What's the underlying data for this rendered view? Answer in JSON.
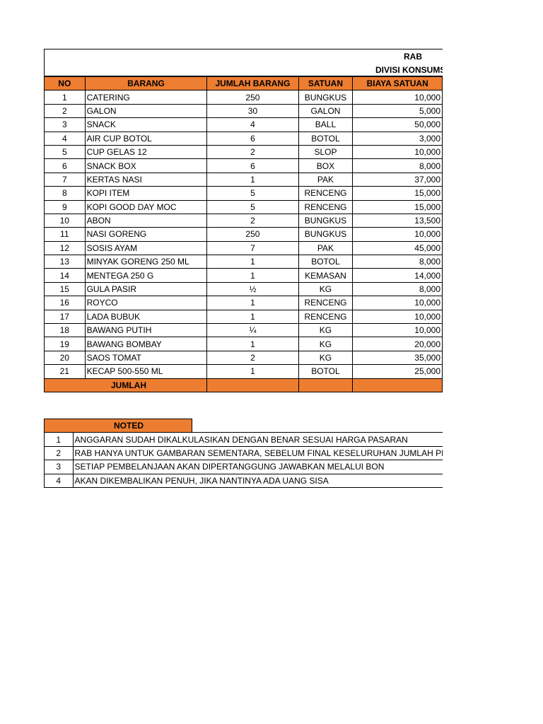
{
  "title": "RAB",
  "subtitle": "DIVISI KONSUMS",
  "headers": [
    "NO",
    "BARANG",
    "JUMLAH BARANG",
    "SATUAN",
    "BIAYA SATUAN"
  ],
  "rows": [
    [
      "1",
      "CATERING",
      "250",
      "BUNGKUS",
      "10,000"
    ],
    [
      "2",
      "GALON",
      "30",
      "GALON",
      "5,000"
    ],
    [
      "3",
      "SNACK",
      "4",
      "BALL",
      "50,000"
    ],
    [
      "4",
      "AIR CUP BOTOL",
      "6",
      "BOTOL",
      "3,000"
    ],
    [
      "5",
      "CUP GELAS 12",
      "2",
      "SLOP",
      "10,000"
    ],
    [
      "6",
      "SNACK BOX",
      "6",
      "BOX",
      "8,000"
    ],
    [
      "7",
      "KERTAS NASI",
      "1",
      "PAK",
      "37,000"
    ],
    [
      "8",
      "KOPI ITEM",
      "5",
      "RENCENG",
      "15,000"
    ],
    [
      "9",
      "KOPI GOOD DAY MOC",
      "5",
      "RENCENG",
      "15,000"
    ],
    [
      "10",
      "ABON",
      "2",
      "BUNGKUS",
      "13,500"
    ],
    [
      "11",
      "NASI GORENG",
      "250",
      "BUNGKUS",
      "10,000"
    ],
    [
      "12",
      "SOSIS AYAM",
      "7",
      "PAK",
      "45,000"
    ],
    [
      "13",
      "MINYAK GORENG 250 ML",
      "1",
      "BOTOL",
      "8,000"
    ],
    [
      "14",
      "MENTEGA 250 G",
      "1",
      "KEMASAN",
      "14,000"
    ],
    [
      "15",
      "GULA PASIR",
      "½",
      "KG",
      "8,000"
    ],
    [
      "16",
      "ROYCO",
      "1",
      "RENCENG",
      "10,000"
    ],
    [
      "17",
      "LADA BUBUK",
      "1",
      "RENCENG",
      "10,000"
    ],
    [
      "18",
      "BAWANG PUTIH",
      "¼",
      "KG",
      "10,000"
    ],
    [
      "19",
      "BAWANG BOMBAY",
      "1",
      "KG",
      "20,000"
    ],
    [
      "20",
      "SAOS TOMAT",
      "2",
      "KG",
      "35,000"
    ],
    [
      "21",
      "KECAP 500-550 ML",
      "1",
      "BOTOL",
      "25,000"
    ]
  ],
  "total_label": "JUMLAH",
  "notes_header": "NOTED",
  "notes": [
    [
      "1",
      "ANGGARAN SUDAH DIKALKULASIKAN DENGAN BENAR SESUAI HARGA PASARAN"
    ],
    [
      "2",
      "RAB HANYA UNTUK GAMBARAN SEMENTARA, SEBELUM FINAL KESELURUHAN JUMLAH PE"
    ],
    [
      "3",
      "SETIAP PEMBELANJAAN AKAN DIPERTANGGUNG JAWABKAN MELALUI BON"
    ],
    [
      "4",
      "AKAN DIKEMBALIKAN PENUH, JIKA NANTINYA ADA UANG SISA"
    ]
  ],
  "colors": {
    "header": "#ED7D31"
  }
}
